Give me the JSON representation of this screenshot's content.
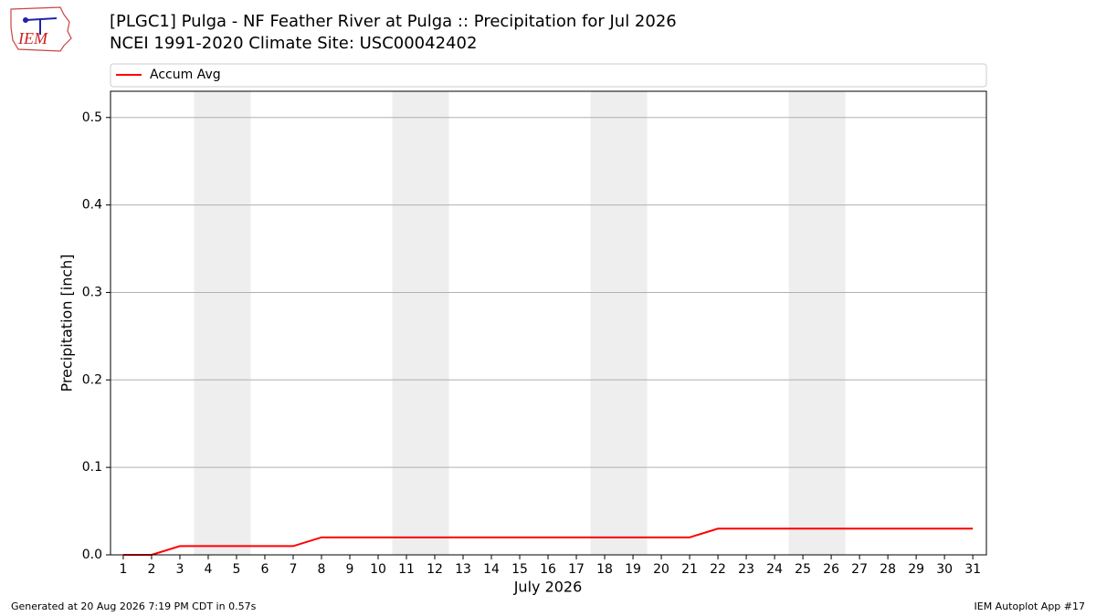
{
  "chart_data": {
    "type": "line",
    "logo_text": "IEM",
    "title": "[PLGC1] Pulga - NF Feather River at Pulga :: Precipitation for Jul 2026",
    "subtitle": "NCEI 1991-2020 Climate Site: USC00042402",
    "xlabel": "July 2026",
    "ylabel": "Precipitation [inch]",
    "x": [
      1,
      2,
      3,
      4,
      5,
      6,
      7,
      8,
      9,
      10,
      11,
      12,
      13,
      14,
      15,
      16,
      17,
      18,
      19,
      20,
      21,
      22,
      23,
      24,
      25,
      26,
      27,
      28,
      29,
      30,
      31
    ],
    "series": [
      {
        "name": "Accum Avg",
        "color": "#ff0000",
        "values": [
          0,
          0,
          0.01,
          0.01,
          0.01,
          0.01,
          0.01,
          0.02,
          0.02,
          0.02,
          0.02,
          0.02,
          0.02,
          0.02,
          0.02,
          0.02,
          0.02,
          0.02,
          0.02,
          0.02,
          0.02,
          0.03,
          0.03,
          0.03,
          0.03,
          0.03,
          0.03,
          0.03,
          0.03,
          0.03,
          0.03
        ]
      }
    ],
    "shaded_x_ranges": [
      [
        3.5,
        5.5
      ],
      [
        10.5,
        12.5
      ],
      [
        17.5,
        19.5
      ],
      [
        24.5,
        26.5
      ]
    ],
    "shade_color": "#eeeeee",
    "xlim": [
      0.55,
      31.48
    ],
    "ylim": [
      0,
      0.53
    ],
    "xticks": [
      1,
      2,
      3,
      4,
      5,
      6,
      7,
      8,
      9,
      10,
      11,
      12,
      13,
      14,
      15,
      16,
      17,
      18,
      19,
      20,
      21,
      22,
      23,
      24,
      25,
      26,
      27,
      28,
      29,
      30,
      31
    ],
    "yticks": [
      {
        "value": 0,
        "label": "0.0"
      },
      0.1,
      0.2,
      0.3,
      0.4,
      0.5
    ],
    "grid": "y",
    "legend_position": "top",
    "footer_left": "Generated at 20 Aug 2026 7:19 PM CDT in 0.57s",
    "footer_right": "IEM Autoplot App #17"
  }
}
